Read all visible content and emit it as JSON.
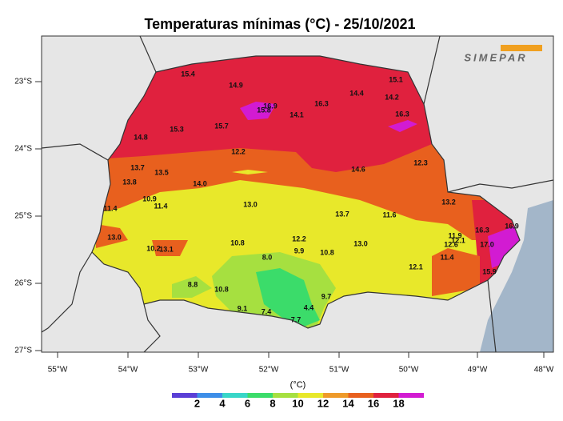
{
  "title": "Temperaturas mínimas (°C) - 25/10/2021",
  "logo": "SIMEPAR",
  "lat_labels": [
    "23°S",
    "24°S",
    "25°S",
    "26°S",
    "27°S"
  ],
  "lon_labels": [
    "55°W",
    "54°W",
    "53°W",
    "52°W",
    "51°W",
    "50°W",
    "49°W",
    "48°W"
  ],
  "stations": [
    "15.4",
    "14.9",
    "15.1",
    "14.4",
    "14.2",
    "16.3",
    "16.9",
    "15.8",
    "14.1",
    "16.3",
    "15.7",
    "15.3",
    "14.8",
    "12.2",
    "12.3",
    "14.6",
    "13.7",
    "13.5",
    "13.8",
    "14.0",
    "10.9",
    "11.4",
    "13.0",
    "13.2",
    "11.4",
    "13.7",
    "11.6",
    "16.3",
    "16.9",
    "13.0",
    "11.9",
    "12.1",
    "12.6",
    "10.8",
    "12.2",
    "13.0",
    "17.0",
    "10.2",
    "13.1",
    "9.9",
    "10.8",
    "8.0",
    "11.4",
    "12.1",
    "15.9",
    "8.8",
    "10.8",
    "9.7",
    "4.4",
    "9.1",
    "7.4",
    "7.7"
  ],
  "colorbar": {
    "unit": "(°C)",
    "ticks": [
      2,
      4,
      6,
      8,
      10,
      12,
      14,
      16,
      18
    ],
    "colors": [
      "#5a3fd6",
      "#3d8ee8",
      "#38d6c8",
      "#3bdc6a",
      "#a6e040",
      "#e8e82a",
      "#ee9a2a",
      "#e8601e",
      "#e0213e",
      "#d21bd2"
    ]
  }
}
